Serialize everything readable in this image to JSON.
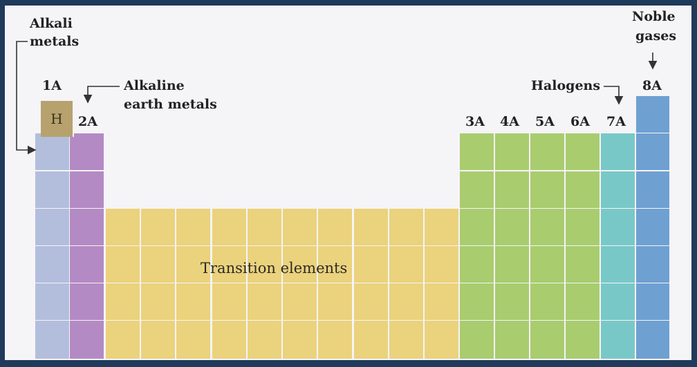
{
  "labels": {
    "alkali_line1": "Alkali",
    "alkali_line2": "metals",
    "group_1a": "1A",
    "hydrogen": "H",
    "group_2a": "2A",
    "alkaline_line1": "Alkaline",
    "alkaline_line2": "earth metals",
    "group_3a": "3A",
    "group_4a": "4A",
    "group_5a": "5A",
    "group_6a": "6A",
    "group_7a": "7A",
    "group_8a": "8A",
    "halogens": "Halogens",
    "noble_line1": "Noble",
    "noble_line2": "gases",
    "transition": "Transition elements"
  },
  "colors": {
    "alkali": "#b3bedc",
    "alkaline_earth": "#b48ac4",
    "hydrogen": "#b7a26e",
    "transition": "#ebd27c",
    "main_group": "#a9cc6f",
    "halogen": "#79c8c8",
    "noble": "#6fa0d2"
  }
}
